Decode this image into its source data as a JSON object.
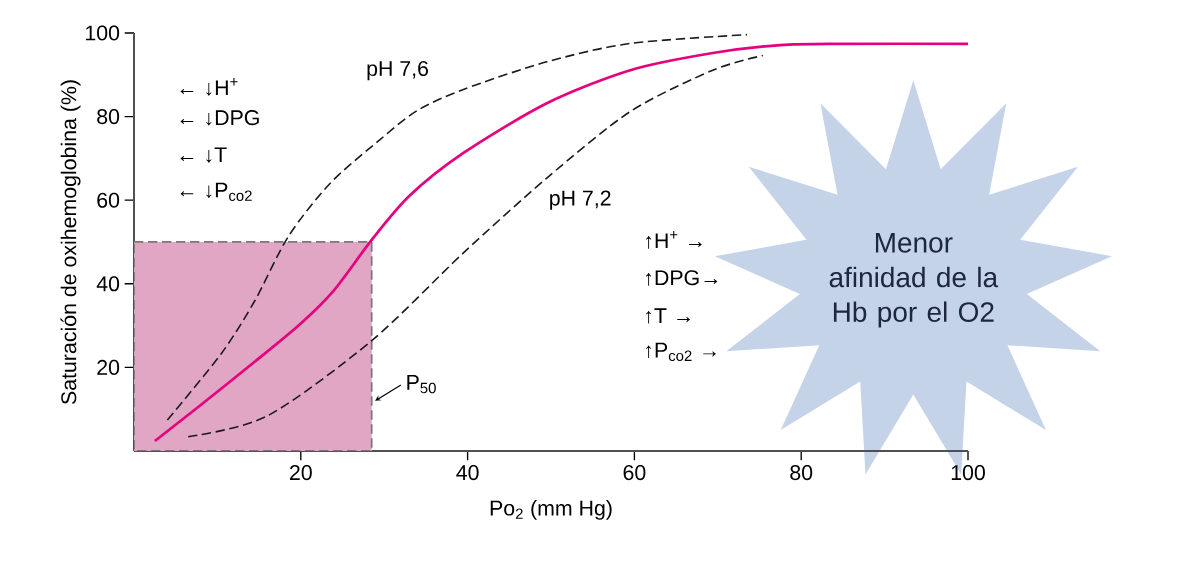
{
  "chart_data": {
    "type": "line",
    "xlabel": "Po$_{2}$ (mm Hg)",
    "ylabel": "Saturación de oxihemoglobina (%)",
    "xlim": [
      0,
      100
    ],
    "ylim": [
      0,
      100
    ],
    "xticks": [
      20,
      40,
      60,
      80,
      100
    ],
    "yticks": [
      20,
      40,
      60,
      80,
      100
    ],
    "grid": false,
    "legend": false,
    "marker": "none",
    "series": [
      {
        "type": "area",
        "color": "#e0a6c4",
        "line_style": "dashed",
        "x": [
          0,
          28.5
        ],
        "values": [
          50,
          50
        ]
      },
      {
        "color": "#e6007e",
        "line_style": "solid",
        "x": [
          2.5,
          8,
          14.5,
          20,
          24,
          28.5,
          33,
          39.5,
          49.5,
          59.5,
          69.4,
          77.5,
          85,
          100
        ],
        "values": [
          2.4,
          11,
          21.4,
          30.5,
          38.5,
          50.5,
          61,
          71.3,
          83.2,
          91.1,
          95.2,
          97.1,
          97.4,
          97.4
        ]
      },
      {
        "name": "pH 7,6",
        "color": "#1a1a1a",
        "line_style": "dashed",
        "x": [
          4,
          10.5,
          14.5,
          18.5,
          23.5,
          29.5,
          34,
          39.5,
          49.5,
          59.5,
          73.5
        ],
        "values": [
          7.4,
          23.4,
          36,
          51.3,
          64,
          74.5,
          81.5,
          86.5,
          93.1,
          97.5,
          99.6
        ]
      },
      {
        "name": "pH 7,2",
        "color": "#1a1a1a",
        "line_style": "dashed",
        "x": [
          6.5,
          16,
          28.5,
          39.5,
          49.5,
          59.5,
          69.4,
          75.4
        ],
        "values": [
          3.4,
          8.4,
          26.4,
          47.4,
          65.3,
          81.2,
          91.1,
          94.6
        ]
      }
    ],
    "annotations": [
      {
        "text": "P$_{50}$",
        "x": 28.5,
        "y": 12
      },
      "← ↓H$^{+}$",
      "← ↓DPG",
      "← ↓T",
      "← ↓P$_{co2}$",
      "↑H$^{+}$ →",
      "↑DPG→",
      "↑T →",
      "↑P$_{co2}$ →",
      "Menor afinidad de la Hb por el O2"
    ]
  }
}
